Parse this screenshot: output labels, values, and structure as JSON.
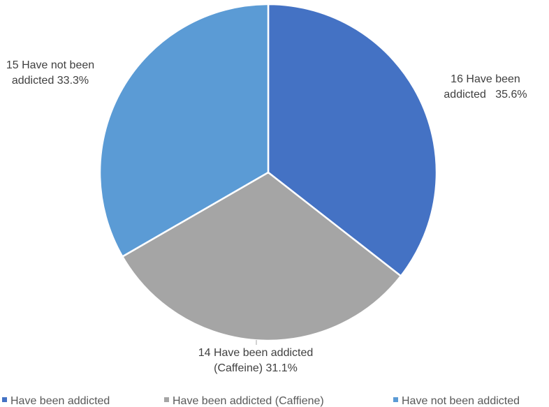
{
  "chart_data": {
    "type": "pie",
    "categories": [
      "Have been addicted",
      "Have been addicted (Caffiene)",
      "Have not been addicted"
    ],
    "values": [
      16,
      14,
      15
    ],
    "percentages": [
      "35.6%",
      "31.1%",
      "33.3%"
    ],
    "data_labels": [
      [
        "16 Have been",
        "addicted   35.6%"
      ],
      [
        "14 Have been addicted",
        "(Caffeine) 31.1%"
      ],
      [
        "15 Have not been",
        "addicted 33.3%"
      ]
    ],
    "colors": [
      "#4472C4",
      "#A5A5A5",
      "#5B9BD5"
    ],
    "legend": {
      "position": "bottom",
      "entries": [
        "Have been addicted",
        "Have been addicted (Caffiene)",
        "Have not been addicted"
      ]
    },
    "title": ""
  }
}
